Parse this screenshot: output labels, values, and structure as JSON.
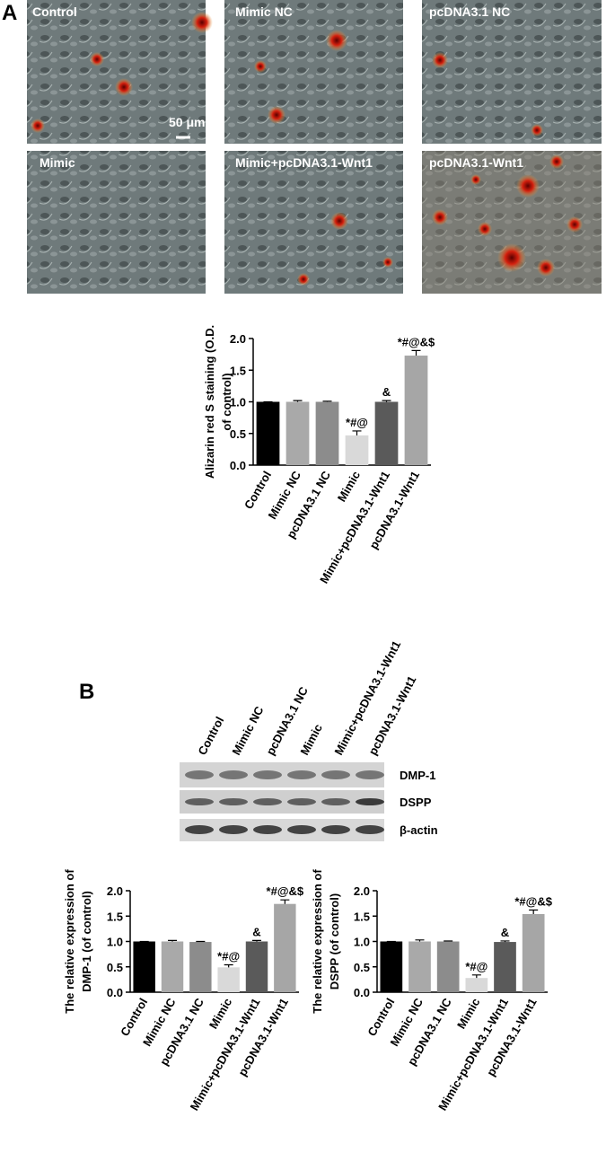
{
  "panels": {
    "a": "A",
    "b": "B"
  },
  "micrographs": {
    "labels": [
      "Control",
      "Mimic NC",
      "pcDNA3.1 NC",
      "Mimic",
      "Mimic+pcDNA3.1-Wnt1",
      "pcDNA3.1-Wnt1"
    ],
    "scale_bar": "50 μm"
  },
  "blot": {
    "lanes": [
      "Control",
      "Mimic NC",
      "pcDNA3.1 NC",
      "Mimic",
      "Mimic+pcDNA3.1-Wnt1",
      "pcDNA3.1-Wnt1"
    ],
    "bands": [
      "DMP-1",
      "DSPP",
      "β-actin"
    ]
  },
  "chart_data": [
    {
      "type": "bar",
      "ylabel": [
        "Alizarin red S staining (O.D.",
        "of control)"
      ],
      "categories": [
        "Control",
        "Mimic NC",
        "pcDNA3.1 NC",
        "Mimic",
        "Mimic+pcDNA3.1-Wnt1",
        "pcDNA3.1-Wnt1"
      ],
      "values": [
        1.0,
        1.0,
        1.0,
        0.47,
        1.0,
        1.73
      ],
      "errors": [
        0,
        0.02,
        0.01,
        0.07,
        0.02,
        0.08
      ],
      "annotations": [
        null,
        null,
        null,
        "*#@",
        "&",
        "*#@&$"
      ],
      "colors": [
        "#000000",
        "#a9a9a9",
        "#8c8c8c",
        "#d9d9d9",
        "#5a5a5a",
        "#a6a6a6"
      ],
      "ylim": [
        0,
        2
      ],
      "yticks": [
        {
          "value": 0,
          "label": "0.0"
        },
        {
          "value": 0.5,
          "label": "0.5"
        },
        {
          "value": 1,
          "label": "1.0"
        },
        {
          "value": 1.5,
          "label": "1.5"
        },
        {
          "value": 2,
          "label": "2.0"
        }
      ]
    },
    {
      "type": "bar",
      "ylabel": [
        "The relative expression of",
        "DMP-1 (of control)"
      ],
      "categories": [
        "Control",
        "Mimic NC",
        "pcDNA3.1 NC",
        "Mimic",
        "Mimic+pcDNA3.1-Wnt1",
        "pcDNA3.1-Wnt1"
      ],
      "values": [
        1.0,
        1.0,
        0.99,
        0.49,
        1.0,
        1.74
      ],
      "errors": [
        0,
        0.02,
        0.01,
        0.05,
        0.02,
        0.08
      ],
      "annotations": [
        null,
        null,
        null,
        "*#@",
        "&",
        "*#@&$"
      ],
      "colors": [
        "#000000",
        "#a9a9a9",
        "#8c8c8c",
        "#d9d9d9",
        "#5a5a5a",
        "#a6a6a6"
      ],
      "ylim": [
        0,
        2
      ],
      "yticks": [
        {
          "value": 0,
          "label": "0.0"
        },
        {
          "value": 0.5,
          "label": "0.5"
        },
        {
          "value": 1,
          "label": "1.0"
        },
        {
          "value": 1.5,
          "label": "1.5"
        },
        {
          "value": 2,
          "label": "2.0"
        }
      ]
    },
    {
      "type": "bar",
      "ylabel": [
        "The relative expression of",
        "DSPP (of control)"
      ],
      "categories": [
        "Control",
        "Mimic NC",
        "pcDNA3.1 NC",
        "Mimic",
        "Mimic+pcDNA3.1-Wnt1",
        "pcDNA3.1-Wnt1"
      ],
      "values": [
        1.0,
        1.0,
        1.0,
        0.28,
        0.99,
        1.54
      ],
      "errors": [
        0,
        0.03,
        0.01,
        0.06,
        0.02,
        0.08
      ],
      "annotations": [
        null,
        null,
        null,
        "*#@",
        "&",
        "*#@&$"
      ],
      "colors": [
        "#000000",
        "#a9a9a9",
        "#8c8c8c",
        "#d9d9d9",
        "#5a5a5a",
        "#a6a6a6"
      ],
      "ylim": [
        0,
        2
      ],
      "yticks": [
        {
          "value": 0,
          "label": "0.0"
        },
        {
          "value": 0.5,
          "label": "0.5"
        },
        {
          "value": 1,
          "label": "1.0"
        },
        {
          "value": 1.5,
          "label": "1.5"
        },
        {
          "value": 2,
          "label": "2.0"
        }
      ]
    }
  ]
}
